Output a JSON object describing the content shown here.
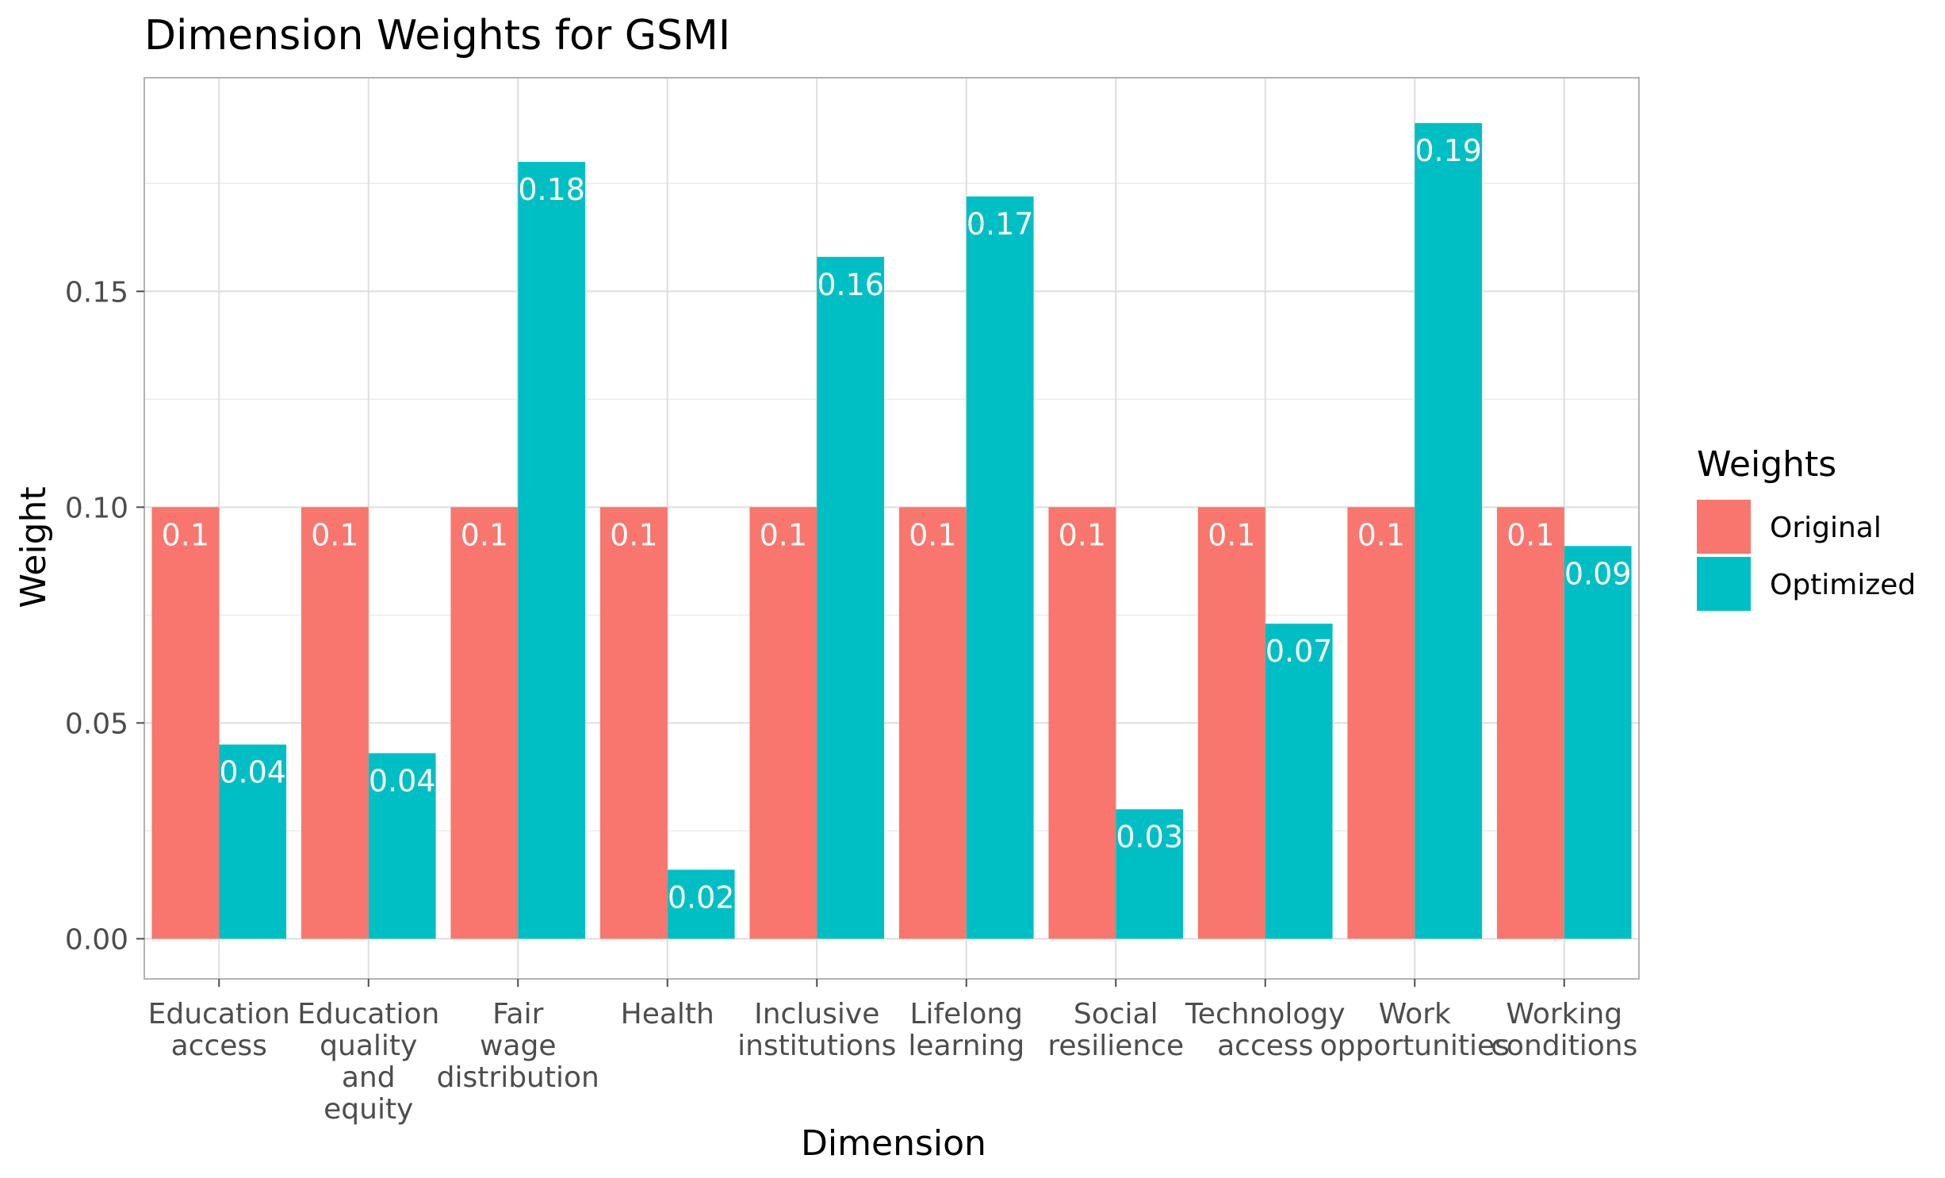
{
  "chart_data": {
    "type": "bar",
    "title": "Dimension Weights for GSMI",
    "xlabel": "Dimension",
    "ylabel": "Weight",
    "ylim": [
      -0.0093,
      0.1995
    ],
    "yticks": [
      0.0,
      0.05,
      0.1,
      0.15
    ],
    "ytick_labels": [
      "0.00",
      "0.05",
      "0.10",
      "0.15"
    ],
    "grid": true,
    "legend_title": "Weights",
    "legend_position": "right",
    "categories": [
      [
        "Education",
        "access"
      ],
      [
        "Education",
        "quality",
        "and",
        "equity"
      ],
      [
        "Fair",
        "wage",
        "distribution"
      ],
      [
        "Health"
      ],
      [
        "Inclusive",
        "institutions"
      ],
      [
        "Lifelong",
        "learning"
      ],
      [
        "Social",
        "resilience"
      ],
      [
        "Technology",
        "access"
      ],
      [
        "Work",
        "opportunities"
      ],
      [
        "Working",
        "conditions"
      ]
    ],
    "series": [
      {
        "name": "Original",
        "color": "#F8766D",
        "values": [
          0.1,
          0.1,
          0.1,
          0.1,
          0.1,
          0.1,
          0.1,
          0.1,
          0.1,
          0.1
        ],
        "labels": [
          "0.1",
          "0.1",
          "0.1",
          "0.1",
          "0.1",
          "0.1",
          "0.1",
          "0.1",
          "0.1",
          "0.1"
        ]
      },
      {
        "name": "Optimized",
        "color": "#00BFC4",
        "values": [
          0.045,
          0.043,
          0.18,
          0.016,
          0.158,
          0.172,
          0.03,
          0.073,
          0.189,
          0.091
        ],
        "labels": [
          "0.04",
          "0.04",
          "0.18",
          "0.02",
          "0.16",
          "0.17",
          "0.03",
          "0.07",
          "0.19",
          "0.09"
        ]
      }
    ]
  }
}
